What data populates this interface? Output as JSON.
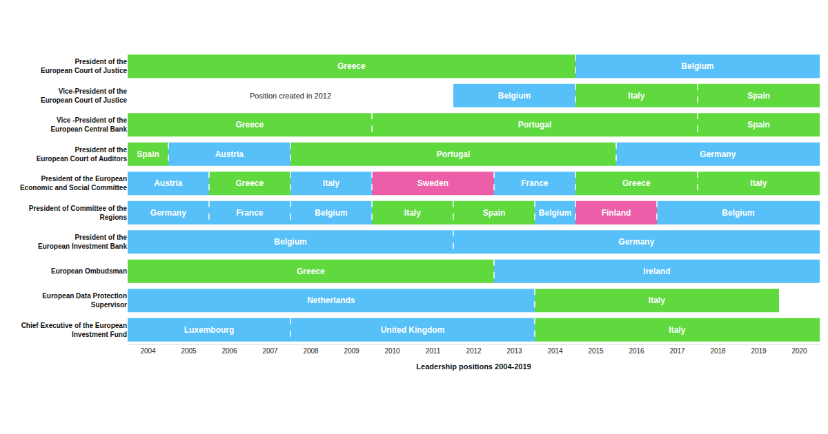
{
  "chart_data": {
    "type": "timeline",
    "orientation": "horizontal",
    "data_labels": true,
    "x_label": "Leadership positions 2004-2019",
    "xlim": [
      2003.5,
      2020.5
    ],
    "xticks": [
      2004,
      2005,
      2006,
      2007,
      2008,
      2009,
      2010,
      2011,
      2012,
      2013,
      2014,
      2015,
      2016,
      2017,
      2018,
      2019,
      2020
    ],
    "annotations": [
      {
        "text": "Position created in 2012",
        "x": 2007.5,
        "row": 1
      }
    ],
    "rows": [
      {
        "label": "President of the\nEuropean Court of Justice",
        "segments": [
          {
            "name": "Greece",
            "start": 2003.5,
            "end": 2014.5,
            "color": "#5fd93e"
          },
          {
            "name": "Belgium",
            "start": 2014.5,
            "end": 2020.5,
            "color": "#57c0f8"
          }
        ]
      },
      {
        "label": "Vice-President of the\nEuropean Court of Justice",
        "segments": [
          {
            "name": "Belgium",
            "start": 2011.5,
            "end": 2014.5,
            "color": "#57c0f8"
          },
          {
            "name": "Italy",
            "start": 2014.5,
            "end": 2017.5,
            "color": "#5fd93e"
          },
          {
            "name": "Spain",
            "start": 2017.5,
            "end": 2020.5,
            "color": "#5fd93e"
          }
        ]
      },
      {
        "label": "Vice -President of the\nEuropean Central Bank",
        "segments": [
          {
            "name": "Greece",
            "start": 2003.5,
            "end": 2009.5,
            "color": "#5fd93e"
          },
          {
            "name": "Portugal",
            "start": 2009.5,
            "end": 2017.5,
            "color": "#5fd93e"
          },
          {
            "name": "Spain",
            "start": 2017.5,
            "end": 2020.5,
            "color": "#5fd93e"
          }
        ]
      },
      {
        "label": "President of the\nEuropean Court of Auditors",
        "segments": [
          {
            "name": "Spain",
            "start": 2003.5,
            "end": 2004.5,
            "color": "#5fd93e"
          },
          {
            "name": "Austria",
            "start": 2004.5,
            "end": 2007.5,
            "color": "#57c0f8"
          },
          {
            "name": "Portugal",
            "start": 2007.5,
            "end": 2015.5,
            "color": "#5fd93e"
          },
          {
            "name": "Germany",
            "start": 2015.5,
            "end": 2020.5,
            "color": "#57c0f8"
          }
        ]
      },
      {
        "label": "President of the European\nEconomic and Social Committee",
        "segments": [
          {
            "name": "Austria",
            "start": 2003.5,
            "end": 2005.5,
            "color": "#57c0f8"
          },
          {
            "name": "Greece",
            "start": 2005.5,
            "end": 2007.5,
            "color": "#5fd93e"
          },
          {
            "name": "Italy",
            "start": 2007.5,
            "end": 2009.5,
            "color": "#57c0f8"
          },
          {
            "name": "Sweden",
            "start": 2009.5,
            "end": 2012.5,
            "color": "#ec5fa8"
          },
          {
            "name": "France",
            "start": 2012.5,
            "end": 2014.5,
            "color": "#57c0f8"
          },
          {
            "name": "Greece",
            "start": 2014.5,
            "end": 2017.5,
            "color": "#5fd93e"
          },
          {
            "name": "Italy",
            "start": 2017.5,
            "end": 2020.5,
            "color": "#5fd93e"
          }
        ]
      },
      {
        "label": "President of Committee of the\nRegions",
        "segments": [
          {
            "name": "Germany",
            "start": 2003.5,
            "end": 2005.5,
            "color": "#57c0f8"
          },
          {
            "name": "France",
            "start": 2005.5,
            "end": 2007.5,
            "color": "#57c0f8"
          },
          {
            "name": "Belgium",
            "start": 2007.5,
            "end": 2009.5,
            "color": "#57c0f8"
          },
          {
            "name": "Italy",
            "start": 2009.5,
            "end": 2011.5,
            "color": "#5fd93e"
          },
          {
            "name": "Spain",
            "start": 2011.5,
            "end": 2013.5,
            "color": "#5fd93e"
          },
          {
            "name": "Belgium",
            "start": 2013.5,
            "end": 2014.5,
            "color": "#57c0f8"
          },
          {
            "name": "Finland",
            "start": 2014.5,
            "end": 2016.5,
            "color": "#ec5fa8"
          },
          {
            "name": "Belgium",
            "start": 2016.5,
            "end": 2020.5,
            "color": "#57c0f8"
          }
        ]
      },
      {
        "label": "President of the\nEuropean Investment Bank",
        "segments": [
          {
            "name": "Belgium",
            "start": 2003.5,
            "end": 2011.5,
            "color": "#57c0f8"
          },
          {
            "name": "Germany",
            "start": 2011.5,
            "end": 2020.5,
            "color": "#57c0f8"
          }
        ]
      },
      {
        "label": "European Ombudsman",
        "segments": [
          {
            "name": "Greece",
            "start": 2003.5,
            "end": 2012.5,
            "color": "#5fd93e"
          },
          {
            "name": "Ireland",
            "start": 2012.5,
            "end": 2020.5,
            "color": "#57c0f8"
          }
        ]
      },
      {
        "label": "European Data Protection\nSupervisor",
        "segments": [
          {
            "name": "Netherlands",
            "start": 2003.5,
            "end": 2013.5,
            "color": "#57c0f8"
          },
          {
            "name": "Italy",
            "start": 2013.5,
            "end": 2019.5,
            "color": "#5fd93e"
          }
        ]
      },
      {
        "label": "Chief Executive of the European\nInvestment Fund",
        "segments": [
          {
            "name": "Luxembourg",
            "start": 2003.5,
            "end": 2007.5,
            "color": "#57c0f8"
          },
          {
            "name": "United Kingdom",
            "start": 2007.5,
            "end": 2013.5,
            "color": "#57c0f8"
          },
          {
            "name": "Italy",
            "start": 2013.5,
            "end": 2020.5,
            "color": "#5fd93e"
          }
        ]
      }
    ]
  }
}
